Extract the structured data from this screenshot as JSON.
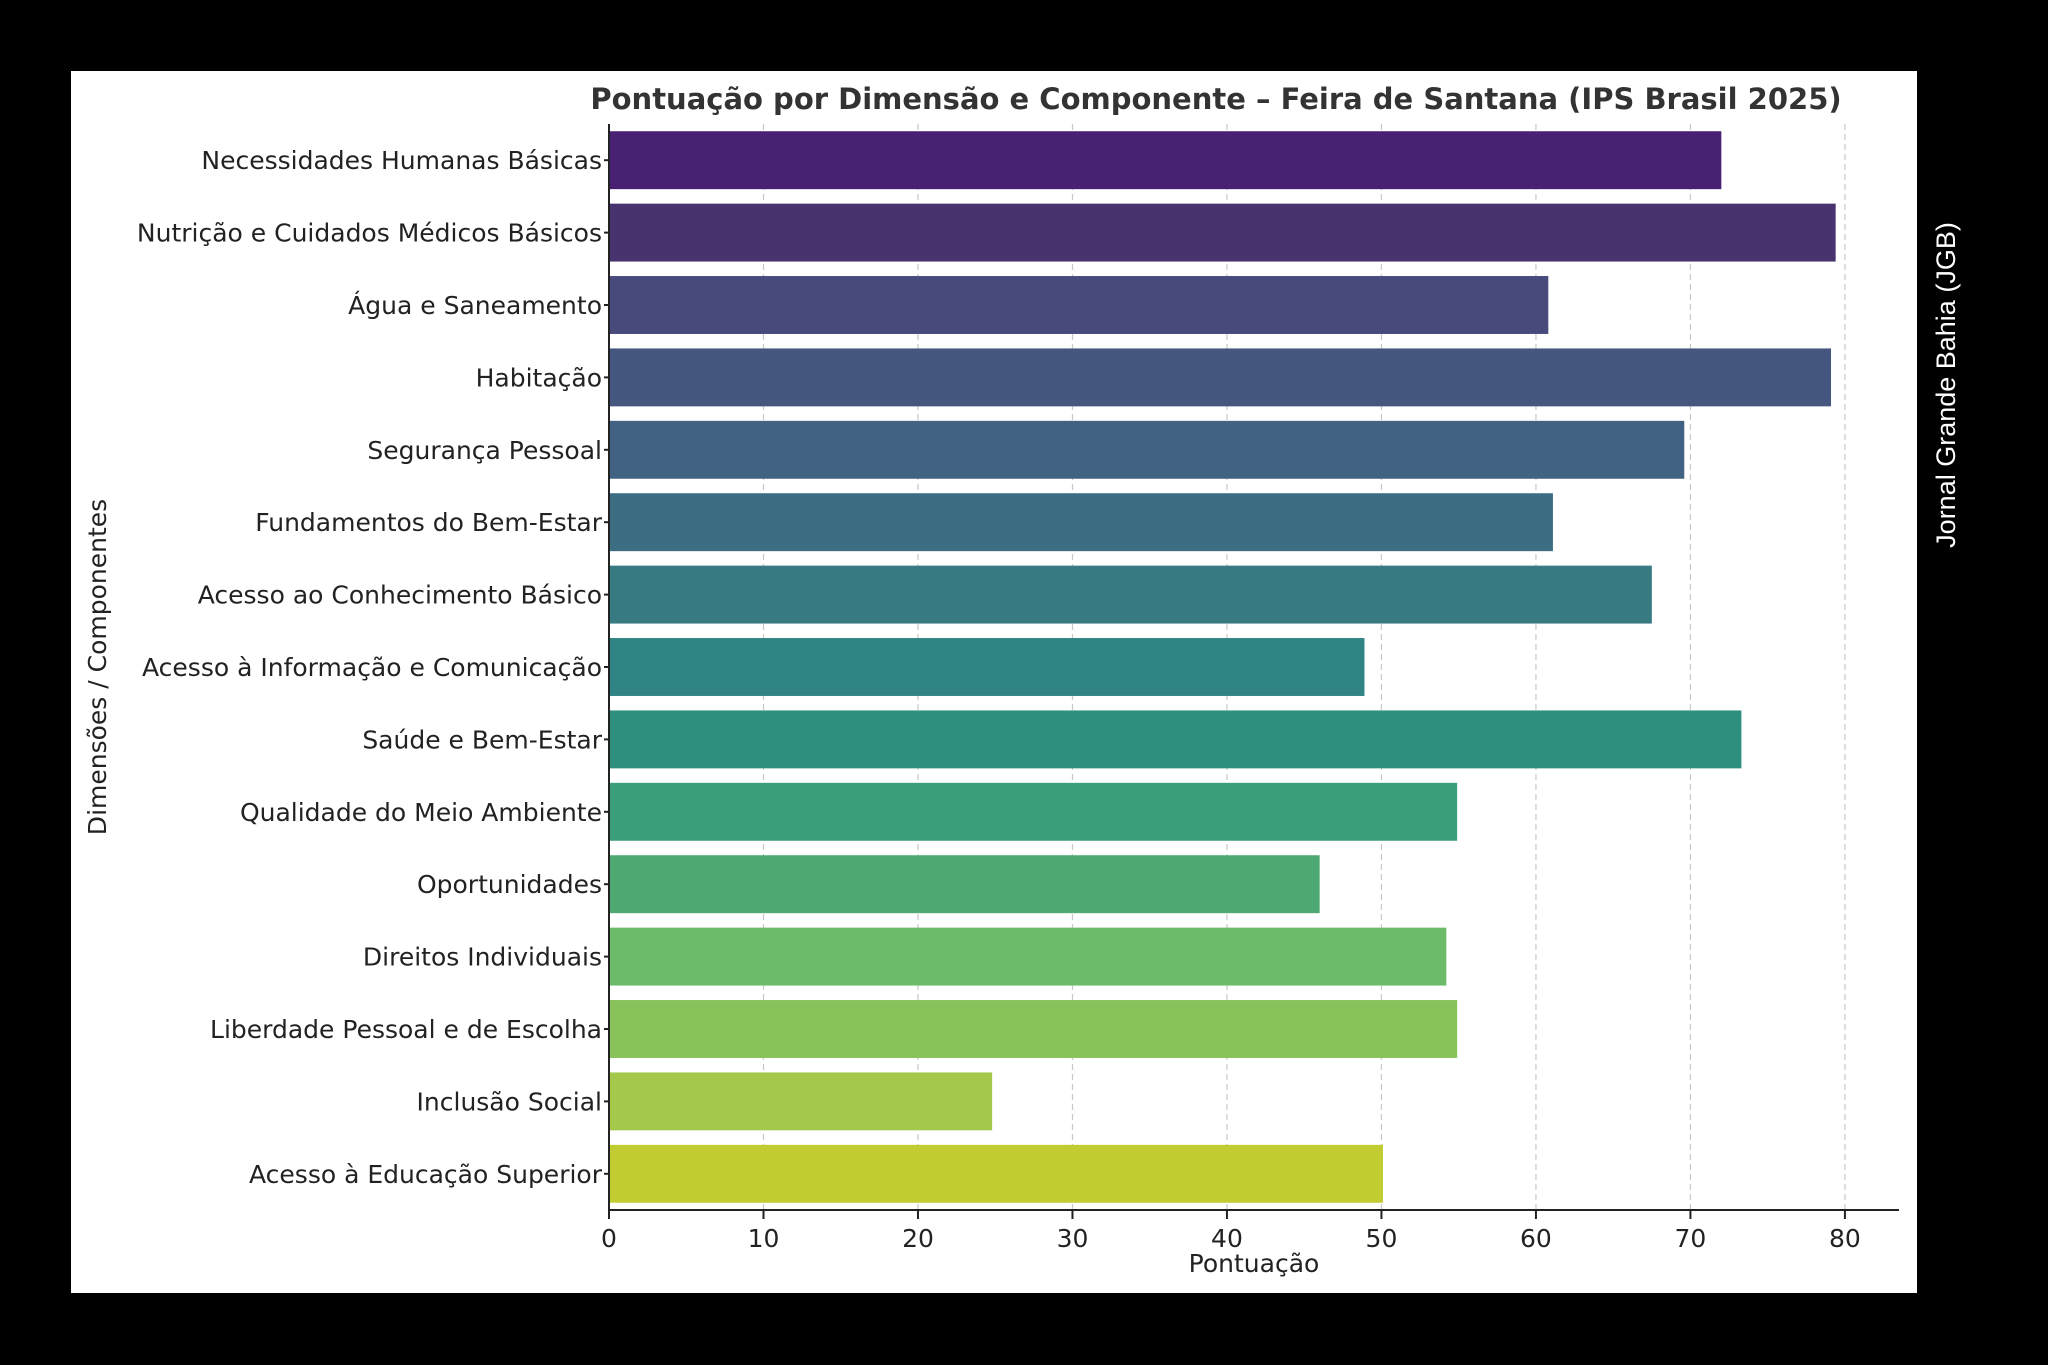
{
  "chart_data": {
    "type": "bar",
    "orientation": "horizontal",
    "title": "Pontuação por Dimensão e Componente – Feira de Santana (IPS Brasil 2025)",
    "xlabel": "Pontuação",
    "ylabel": "Dimensões / Componentes",
    "xlim": [
      0,
      83.5
    ],
    "xticks": [
      0,
      10,
      20,
      30,
      40,
      50,
      60,
      70,
      80
    ],
    "grid": "x-dashed",
    "categories": [
      "Necessidades Humanas Básicas",
      "Nutrição e Cuidados Médicos Básicos",
      "Água e Saneamento",
      "Habitação",
      "Segurança Pessoal",
      "Fundamentos do Bem-Estar",
      "Acesso ao Conhecimento Básico",
      "Acesso à Informação e Comunicação",
      "Saúde e Bem-Estar",
      "Qualidade do Meio Ambiente",
      "Oportunidades",
      "Direitos Individuais",
      "Liberdade Pessoal e de Escolha",
      "Inclusão Social",
      "Acesso à Educação Superior"
    ],
    "values": [
      72.0,
      79.4,
      60.8,
      79.1,
      69.6,
      61.1,
      67.5,
      48.9,
      73.3,
      54.9,
      46.0,
      54.2,
      54.9,
      24.8,
      50.1
    ],
    "colors": [
      "#482173",
      "#48336f",
      "#484a7c",
      "#46577f",
      "#416283",
      "#3c6d83",
      "#377a82",
      "#308484",
      "#2f8f7e",
      "#3a9e7a",
      "#4da872",
      "#6bbb6b",
      "#88c25a",
      "#a3c84a",
      "#c0cc32"
    ]
  },
  "watermark": "Jornal Grande Bahia (JGB)"
}
